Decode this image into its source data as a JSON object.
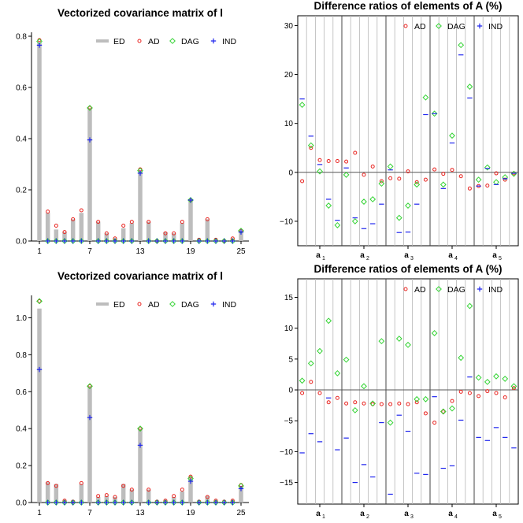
{
  "colors": {
    "ED": "#bdbdbd",
    "AD": "#e8231f",
    "DAG": "#35d335",
    "IND": "#1f25ee",
    "axis": "#000000",
    "grid": "#b8b8b8",
    "group_line": "#444444"
  },
  "legend": {
    "ED": "ED",
    "AD": "AD",
    "DAG": "DAG",
    "IND": "IND"
  },
  "chart_data": [
    {
      "type": "bar",
      "title": "Vectorized covariance matrix of l",
      "x_ticks": [
        "1",
        "7",
        "13",
        "19",
        "25"
      ],
      "ylim": [
        0,
        0.8
      ],
      "y_ticks": [
        "0.0",
        "0.2",
        "0.4",
        "0.6",
        "0.8"
      ],
      "legend_position": "top-right",
      "x": [
        1,
        2,
        3,
        4,
        5,
        6,
        7,
        8,
        9,
        10,
        11,
        12,
        13,
        14,
        15,
        16,
        17,
        18,
        19,
        20,
        21,
        22,
        23,
        24,
        25
      ],
      "series": [
        {
          "name": "ED",
          "values": [
            0.775,
            0.11,
            0.045,
            0.035,
            0.085,
            0.11,
            0.52,
            0.075,
            0.03,
            0.01,
            0.05,
            0.07,
            0.275,
            0.075,
            0.0,
            0.035,
            0.03,
            0.07,
            0.16,
            0.0,
            0.085,
            0.0,
            0.0,
            0.01,
            0.04
          ]
        },
        {
          "name": "AD",
          "values": [
            0.785,
            0.115,
            0.06,
            0.035,
            0.085,
            0.12,
            0.52,
            0.075,
            0.03,
            0.01,
            0.06,
            0.075,
            0.28,
            0.075,
            0.0,
            0.03,
            0.03,
            0.075,
            0.16,
            0.005,
            0.085,
            0.005,
            0.0,
            0.01,
            0.04
          ]
        },
        {
          "name": "DAG",
          "values": [
            0.78,
            0,
            0,
            0,
            0,
            0,
            0.52,
            0,
            0,
            0,
            0,
            0,
            0.275,
            0,
            0,
            0,
            0,
            0,
            0.16,
            0,
            0,
            0,
            0,
            0,
            0.04
          ]
        },
        {
          "name": "IND",
          "values": [
            0.765,
            0,
            0,
            0,
            0,
            0,
            0.395,
            0,
            0,
            0,
            0,
            0,
            0.265,
            0,
            0,
            0,
            0,
            0,
            0.16,
            0,
            0,
            0,
            0,
            0,
            0.035
          ]
        }
      ]
    },
    {
      "type": "scatter",
      "title": "Difference ratios of elements of A (%)",
      "ylim": [
        -15,
        32
      ],
      "y_ticks": [
        "−10",
        "0",
        "10",
        "20",
        "30"
      ],
      "y_tick_values": [
        -10,
        0,
        10,
        20,
        30
      ],
      "groups": [
        "a",
        "a",
        "a",
        "a",
        "a"
      ],
      "group_subscripts": [
        "1",
        "2",
        "3",
        "4",
        "5"
      ],
      "legend_position": "top-right",
      "series": [
        {
          "name": "AD",
          "values": [
            -1.8,
            5,
            2.5,
            2.3,
            2.3,
            2.2,
            4,
            -0.5,
            1.2,
            -1.8,
            -1.2,
            -1.3,
            0.2,
            -2,
            -1.5,
            0.6,
            -0.3,
            0.5,
            -0.8,
            -3.3,
            -2.8,
            -2.7,
            -0.2,
            -1.5,
            -0.2
          ]
        },
        {
          "name": "DAG",
          "values": [
            13.8,
            5.5,
            0.2,
            -6.8,
            -10.8,
            -0.5,
            -10,
            -6,
            -5.5,
            -2.3,
            1.2,
            -9.3,
            -6.8,
            -2.5,
            15.3,
            12,
            -2.5,
            7.5,
            26,
            17.5,
            -1.5,
            1,
            -2,
            -1,
            -0.3
          ]
        },
        {
          "name": "IND",
          "values": [
            15,
            7.4,
            1.6,
            -5.5,
            -9.8,
            0.9,
            -9.3,
            -11.5,
            -10.5,
            -6.5,
            0.5,
            -12.3,
            -12.2,
            -6.5,
            11.8,
            12,
            -3.3,
            6,
            24,
            15.2,
            -2.8,
            0.8,
            -2.5,
            -1.3,
            -0.2
          ]
        }
      ]
    },
    {
      "type": "bar",
      "title": "Vectorized covariance matrix of l",
      "x_ticks": [
        "1",
        "7",
        "13",
        "19",
        "25"
      ],
      "ylim": [
        0,
        1.1
      ],
      "y_ticks": [
        "0.0",
        "0.2",
        "0.4",
        "0.6",
        "0.8",
        "1.0"
      ],
      "legend_position": "top-right",
      "x": [
        1,
        2,
        3,
        4,
        5,
        6,
        7,
        8,
        9,
        10,
        11,
        12,
        13,
        14,
        15,
        16,
        17,
        18,
        19,
        20,
        21,
        22,
        23,
        24,
        25
      ],
      "series": [
        {
          "name": "ED",
          "values": [
            1.05,
            0.11,
            0.1,
            0.01,
            0.01,
            0.1,
            0.63,
            0.03,
            0.035,
            0.03,
            0.1,
            0.07,
            0.4,
            0.07,
            0.005,
            0.01,
            0.03,
            0.06,
            0.14,
            0.005,
            0.035,
            0.01,
            0.0,
            0.01,
            0.09
          ]
        },
        {
          "name": "AD",
          "values": [
            1.09,
            0.105,
            0.09,
            0.01,
            0.005,
            0.105,
            0.63,
            0.035,
            0.04,
            0.03,
            0.09,
            0.07,
            0.4,
            0.07,
            0.005,
            0.01,
            0.035,
            0.07,
            0.14,
            0.005,
            0.03,
            0.01,
            0.005,
            0.01,
            0.095
          ]
        },
        {
          "name": "DAG",
          "values": [
            1.09,
            0,
            0,
            0,
            0,
            0,
            0.63,
            0,
            0,
            0,
            0,
            0,
            0.4,
            0,
            0,
            0,
            0,
            0,
            0.13,
            0,
            0,
            0,
            0,
            0,
            0.09
          ]
        },
        {
          "name": "IND",
          "values": [
            0.72,
            0,
            0,
            0,
            0,
            0,
            0.46,
            0,
            0,
            0,
            0,
            0,
            0.31,
            0,
            0,
            0,
            0,
            0,
            0.115,
            0,
            0,
            0,
            0,
            0,
            0.075
          ]
        }
      ]
    },
    {
      "type": "scatter",
      "title": "Difference ratios of elements of A (%)",
      "ylim": [
        -18.5,
        18
      ],
      "y_ticks": [
        "−15",
        "−10",
        "−5",
        "0",
        "5",
        "10",
        "15"
      ],
      "y_tick_values": [
        -15,
        -10,
        -5,
        0,
        5,
        10,
        15
      ],
      "groups": [
        "a",
        "a",
        "a",
        "a",
        "a"
      ],
      "group_subscripts": [
        "1",
        "2",
        "3",
        "4",
        "5"
      ],
      "legend_position": "top-right",
      "series": [
        {
          "name": "AD",
          "values": [
            -0.5,
            1.3,
            -0.5,
            -2,
            -1.3,
            -2.2,
            -2,
            -2.2,
            -2.3,
            -2.3,
            -2.3,
            -2.2,
            -2.3,
            -2,
            -3.8,
            -5.3,
            -3.5,
            -1.8,
            -0.3,
            -0.5,
            -1,
            -0.2,
            -0.5,
            -1.2,
            0.3
          ]
        },
        {
          "name": "DAG",
          "values": [
            1.5,
            4.3,
            6.3,
            11.2,
            2.7,
            4.9,
            -3.3,
            0.6,
            -2.2,
            7.9,
            -5.3,
            8.3,
            7.3,
            -1.5,
            -1.5,
            9.2,
            -3.5,
            -3,
            5.2,
            13.6,
            2,
            1.3,
            2.2,
            1.8,
            0.6
          ]
        },
        {
          "name": "IND",
          "values": [
            -10.2,
            -7.1,
            -8.4,
            -1.3,
            -9.7,
            -7.8,
            -15,
            -12.1,
            -14.1,
            -5.3,
            -16.9,
            -4.1,
            -6.7,
            -13.5,
            -13.7,
            -1.1,
            -12.7,
            -12.3,
            -4.9,
            2.1,
            -7.7,
            -8.2,
            -6.1,
            -7.7,
            -9.4
          ]
        }
      ]
    }
  ]
}
